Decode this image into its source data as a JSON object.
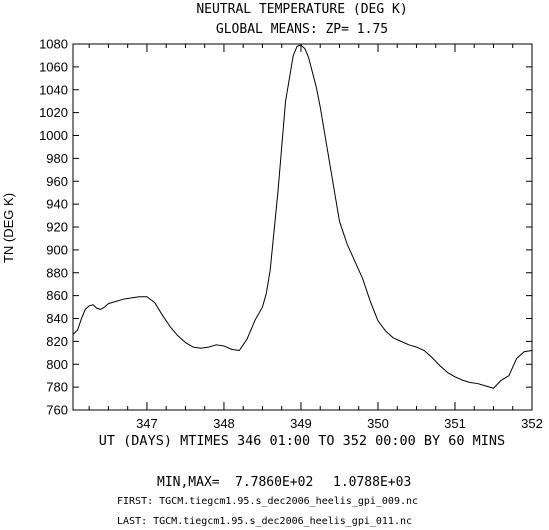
{
  "chart_data": {
    "type": "line",
    "title": "NEUTRAL TEMPERATURE (DEG K)",
    "subtitle": "GLOBAL MEANS: ZP=  1.75",
    "ylabel": "TN (DEG K)",
    "xlabel": "UT (DAYS) MTIMES 346 01:00 TO 352 00:00 BY    60 MINS",
    "xlim": [
      346.04,
      352.0
    ],
    "ylim": [
      760,
      1080
    ],
    "x_ticks": [
      347,
      348,
      349,
      350,
      351,
      352
    ],
    "y_ticks": [
      760,
      780,
      800,
      820,
      840,
      860,
      880,
      900,
      920,
      940,
      960,
      980,
      1000,
      1020,
      1040,
      1060,
      1080
    ],
    "grid": false,
    "series": [
      {
        "x": [
          346.04,
          346.1,
          346.15,
          346.2,
          346.25,
          346.3,
          346.35,
          346.4,
          346.45,
          346.5,
          346.55,
          346.6,
          346.7,
          346.8,
          346.9,
          347.0,
          347.1,
          347.2,
          347.3,
          347.4,
          347.5,
          347.6,
          347.7,
          347.8,
          347.9,
          348.0,
          348.1,
          348.2,
          348.3,
          348.4,
          348.5,
          348.55,
          348.6,
          348.7,
          348.8,
          348.9,
          348.95,
          349.0,
          349.05,
          349.1,
          349.15,
          349.2,
          349.25,
          349.3,
          349.35,
          349.4,
          349.45,
          349.5,
          349.6,
          349.7,
          349.8,
          349.9,
          350.0,
          350.1,
          350.2,
          350.3,
          350.4,
          350.5,
          350.6,
          350.7,
          350.8,
          350.9,
          351.0,
          351.1,
          351.2,
          351.3,
          351.4,
          351.5,
          351.6,
          351.7,
          351.8,
          351.9,
          352.0
        ],
        "y": [
          826,
          830,
          840,
          848,
          851,
          852,
          849,
          848,
          850,
          853,
          854,
          855,
          857,
          858,
          859,
          859,
          854,
          843,
          833,
          825,
          819,
          815,
          814,
          815,
          817,
          816,
          813,
          812,
          822,
          838,
          850,
          862,
          882,
          950,
          1030,
          1070,
          1078,
          1079,
          1076,
          1068,
          1055,
          1042,
          1025,
          1005,
          985,
          965,
          945,
          925,
          905,
          890,
          875,
          855,
          838,
          829,
          823,
          820,
          817,
          815,
          812,
          806,
          799,
          793,
          789,
          786,
          784,
          783,
          781,
          779,
          786,
          790,
          805,
          811,
          812
        ]
      }
    ]
  },
  "footer": {
    "minmax_label": "MIN,MAX=",
    "min_value": "7.7860E+02",
    "max_value": "1.0788E+03",
    "first_file": "FIRST: TGCM.tiegcm1.95.s_dec2006_heelis_gpi_009.nc",
    "last_file": "LAST:  TGCM.tiegcm1.95.s_dec2006_heelis_gpi_011.nc"
  }
}
